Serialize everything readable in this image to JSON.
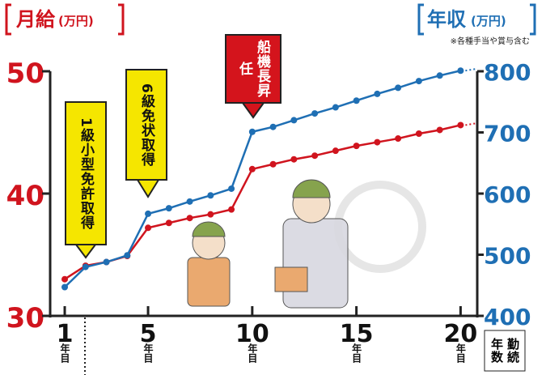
{
  "chart_data": {
    "type": "line",
    "left_title": "月給",
    "right_title": "年収",
    "unit": "(万円)",
    "note": "※各種手当や賞与含む",
    "x_label": "勤続年数",
    "x_tick_suffix": "年目",
    "x": [
      1,
      2,
      3,
      4,
      5,
      6,
      7,
      8,
      9,
      10,
      11,
      12,
      13,
      14,
      15,
      16,
      17,
      18,
      19,
      20
    ],
    "xlim": [
      0.3,
      20.8
    ],
    "xticks": [
      1,
      5,
      10,
      15,
      20
    ],
    "ylim": [
      30,
      50
    ],
    "yticks": [
      30,
      40,
      50
    ],
    "y2lim": [
      400,
      800
    ],
    "y2ticks": [
      400,
      500,
      600,
      700,
      800
    ],
    "series": [
      {
        "name": "月給",
        "color": "#d0141e",
        "axis": "y",
        "values": [
          33.0,
          34.1,
          34.4,
          34.9,
          37.2,
          37.6,
          38.0,
          38.3,
          38.7,
          42.0,
          42.4,
          42.8,
          43.1,
          43.5,
          43.9,
          44.2,
          44.5,
          44.9,
          45.2,
          45.6
        ]
      },
      {
        "name": "年収",
        "color": "#1f6fb4",
        "axis": "y2",
        "values": [
          447,
          480,
          488,
          499,
          567,
          576,
          587,
          597,
          608,
          701,
          709,
          720,
          731,
          741,
          752,
          763,
          773,
          784,
          793,
          801
        ]
      }
    ],
    "annotations": [
      "1級小型免許取得",
      "6級免状取得",
      "船機長昇任"
    ]
  }
}
